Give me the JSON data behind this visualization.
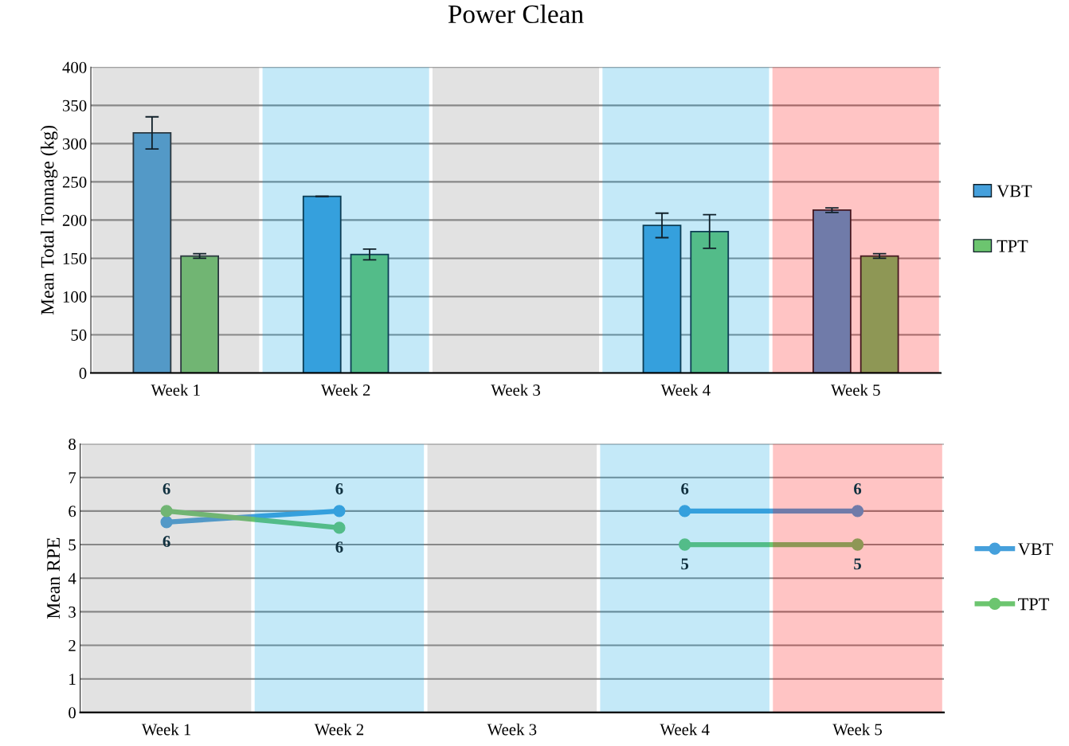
{
  "chart_data": [
    {
      "type": "bar",
      "title": "Power Clean",
      "ylabel": "Mean Total Tonnage (kg)",
      "categories": [
        "Week 1",
        "Week 2",
        "Week 3",
        "Week 4",
        "Week 5"
      ],
      "series": [
        {
          "name": "VBT",
          "color": "#45a0dc",
          "values": [
            314,
            231,
            null,
            193,
            213
          ],
          "errors": [
            21,
            0,
            null,
            16,
            3
          ]
        },
        {
          "name": "TPT",
          "color": "#6cc56f",
          "values": [
            153,
            155,
            null,
            185,
            153
          ],
          "errors": [
            3,
            7,
            null,
            22,
            3
          ]
        }
      ],
      "ylim": [
        0,
        400
      ],
      "yticks": [
        0,
        50,
        100,
        150,
        200,
        250,
        300,
        350,
        400
      ],
      "grid": "y",
      "legend": "right",
      "bands": [
        {
          "axis": "x",
          "from": "Week 1",
          "to": "Week 1",
          "color": "#808080"
        },
        {
          "axis": "x",
          "from": "Week 2",
          "to": "Week 2",
          "color": "#00a0e0"
        },
        {
          "axis": "x",
          "from": "Week 3",
          "to": "Week 3",
          "color": "#808080"
        },
        {
          "axis": "x",
          "from": "Week 4",
          "to": "Week 4",
          "color": "#00a0e0"
        },
        {
          "axis": "x",
          "from": "Week 5",
          "to": "Week 5",
          "color": "#ff0000"
        }
      ]
    },
    {
      "type": "line",
      "ylabel": "Mean RPE",
      "categories": [
        "Week 1",
        "Week 2",
        "Week 3",
        "Week 4",
        "Week 5"
      ],
      "series": [
        {
          "name": "VBT",
          "color": "#45a0dc",
          "values": [
            5.67,
            6,
            null,
            6,
            6
          ],
          "value_labels": [
            "6",
            "6",
            null,
            "6",
            "6"
          ]
        },
        {
          "name": "TPT",
          "color": "#6cc56f",
          "values": [
            6,
            5.5,
            null,
            5,
            5
          ],
          "value_labels": [
            "6",
            "6",
            null,
            "5",
            "5"
          ]
        }
      ],
      "ylim": [
        0,
        8
      ],
      "yticks": [
        0,
        1,
        2,
        3,
        4,
        5,
        6,
        7,
        8
      ],
      "grid": "y",
      "legend": "right",
      "marker": "circle",
      "line_style": "solid",
      "bands": [
        {
          "axis": "x",
          "from": "Week 1",
          "to": "Week 1",
          "color": "#808080"
        },
        {
          "axis": "x",
          "from": "Week 2",
          "to": "Week 2",
          "color": "#00a0e0"
        },
        {
          "axis": "x",
          "from": "Week 3",
          "to": "Week 3",
          "color": "#808080"
        },
        {
          "axis": "x",
          "from": "Week 4",
          "to": "Week 4",
          "color": "#00a0e0"
        },
        {
          "axis": "x",
          "from": "Week 5",
          "to": "Week 5",
          "color": "#ff0000"
        }
      ]
    }
  ]
}
